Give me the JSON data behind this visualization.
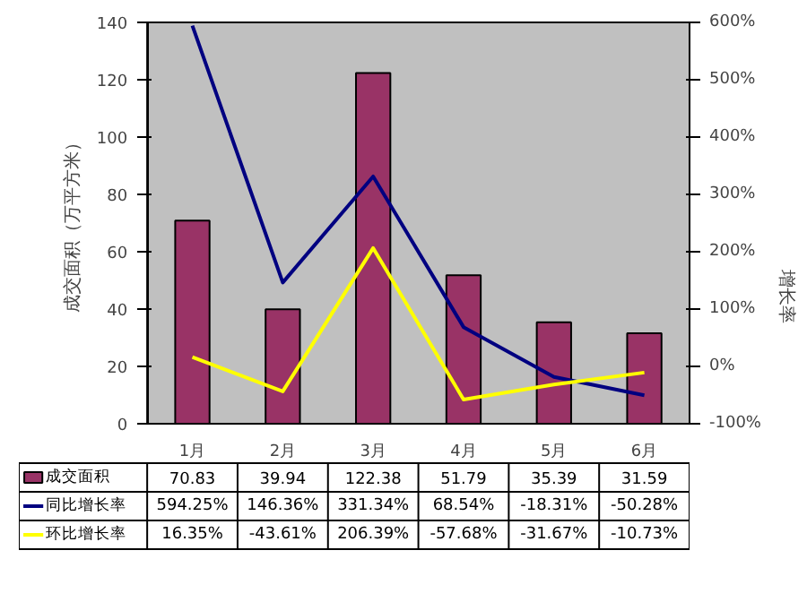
{
  "chart_data": {
    "type": "bar",
    "ylabel": "成交面积（万平方米）",
    "y2label": "增长率",
    "categories": [
      "1月",
      "2月",
      "3月",
      "4月",
      "5月",
      "6月"
    ],
    "series": [
      {
        "name": "成交面积",
        "color": "#993366",
        "values": [
          70.83,
          39.94,
          122.38,
          51.79,
          35.39,
          31.59
        ],
        "value_labels": [
          "70.83",
          "39.94",
          "122.38",
          "51.79",
          "35.39",
          "31.59"
        ]
      },
      {
        "name": "同比增长率",
        "type": "line",
        "axis": "y2",
        "color": "#000080",
        "values": [
          594.25,
          146.36,
          331.34,
          68.54,
          -18.31,
          -50.28
        ],
        "value_labels": [
          "594.25%",
          "146.36%",
          "331.34%",
          "68.54%",
          "-18.31%",
          "-50.28%"
        ]
      },
      {
        "name": "环比增长率",
        "type": "line",
        "axis": "y2",
        "color": "#ffff00",
        "values": [
          16.35,
          -43.61,
          206.39,
          -57.68,
          -31.67,
          -10.73
        ],
        "value_labels": [
          "16.35%",
          "-43.61%",
          "206.39%",
          "-57.68%",
          "-31.67%",
          "-10.73%"
        ]
      }
    ],
    "ylim": [
      0,
      140
    ],
    "yticks": [
      0,
      20,
      40,
      60,
      80,
      100,
      120,
      140
    ],
    "y2lim": [
      -100,
      600
    ],
    "y2ticks": [
      {
        "value": -100,
        "label": "-100%"
      },
      {
        "value": 0,
        "label": "0%"
      },
      {
        "value": 100,
        "label": "100%"
      },
      {
        "value": 200,
        "label": "200%"
      },
      {
        "value": 300,
        "label": "300%"
      },
      {
        "value": 400,
        "label": "400%"
      },
      {
        "value": 500,
        "label": "500%"
      },
      {
        "value": 600,
        "label": "600%"
      }
    ],
    "legend": "bottom",
    "marker": "none",
    "line_style": "solid"
  }
}
